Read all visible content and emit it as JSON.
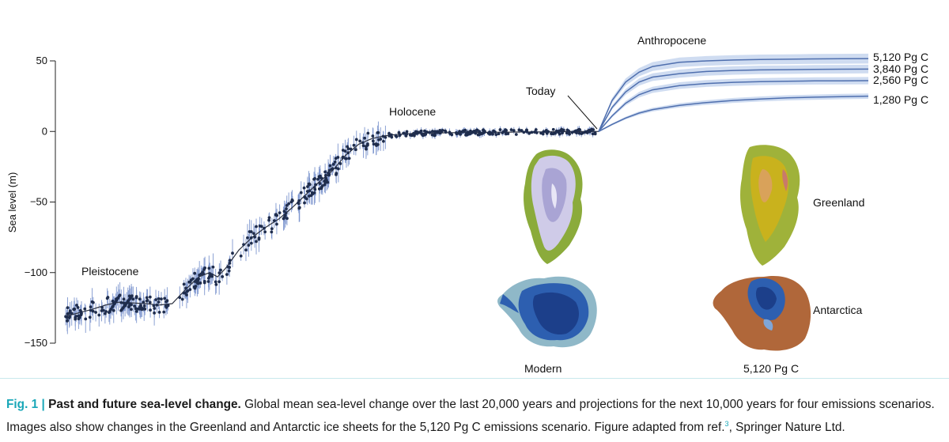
{
  "chart_data": {
    "type": "scatter",
    "ylabel": "Sea level (m)",
    "xlabel": "",
    "ylim": [
      -150,
      50
    ],
    "yticks": [
      50,
      0,
      -50,
      -100,
      -150
    ],
    "grid": false,
    "x_range_kyr": [
      -20,
      10
    ],
    "era_labels": [
      "Pleistocene",
      "Holocene",
      "Anthropocene"
    ],
    "today_label": "Today",
    "reconstruction": {
      "x": [
        -20,
        -19,
        -18.5,
        -18,
        -17,
        -16.5,
        -16,
        -15.5,
        -15,
        -14.6,
        -14.3,
        -14,
        -13.5,
        -13,
        -12.5,
        -12,
        -11.5,
        -11,
        -10.5,
        -10,
        -9.5,
        -9,
        -8.5,
        -8,
        -7.5,
        -7,
        -6.5,
        -6,
        -5,
        -4,
        -3,
        -2,
        -1,
        0
      ],
      "y": [
        -131,
        -126,
        -123,
        -121,
        -122,
        -123,
        -122,
        -112,
        -103,
        -100,
        -103,
        -97,
        -84,
        -75,
        -68,
        -62,
        -54,
        -45,
        -36,
        -28,
        -17,
        -9,
        -5,
        -3,
        -2,
        -1.5,
        -1.2,
        -1,
        -0.8,
        -0.6,
        -0.4,
        -0.3,
        -0.1,
        0
      ]
    },
    "series": [
      {
        "name": "5,120 Pg C",
        "x": [
          0,
          0.5,
          1,
          1.5,
          2,
          3,
          4,
          5,
          6,
          7,
          8,
          9,
          10
        ],
        "y": [
          0,
          22,
          35,
          42,
          46,
          49,
          50,
          50.6,
          51,
          51.2,
          51.4,
          51.5,
          51.6
        ]
      },
      {
        "name": "3,840 Pg C",
        "x": [
          0,
          0.5,
          1,
          1.5,
          2,
          3,
          4,
          5,
          6,
          7,
          8,
          9,
          10
        ],
        "y": [
          0,
          17,
          28,
          35,
          38.5,
          41,
          42.5,
          43.2,
          43.6,
          43.8,
          44,
          44.1,
          44.2
        ]
      },
      {
        "name": "2,560 Pg C",
        "x": [
          0,
          0.5,
          1,
          1.5,
          2,
          3,
          4,
          5,
          6,
          7,
          8,
          9,
          10
        ],
        "y": [
          0,
          11,
          20,
          26,
          29.5,
          32.5,
          34,
          34.8,
          35.3,
          35.6,
          35.8,
          35.9,
          36
        ]
      },
      {
        "name": "1,280 Pg C",
        "x": [
          0,
          0.5,
          1,
          1.5,
          2,
          3,
          4,
          5,
          6,
          7,
          8,
          9,
          10
        ],
        "y": [
          0,
          5,
          9.5,
          13,
          15.5,
          18.5,
          20.5,
          22,
          23,
          23.8,
          24.3,
          24.7,
          25
        ]
      }
    ],
    "band_color": "#c3d3ee",
    "line_color": "#4f6fae",
    "point_color": "#1f2d4d",
    "errorbar_color": "#7f97cf",
    "map_labels": {
      "modern": "Modern",
      "scenario": "5,120 Pg C",
      "greenland": "Greenland",
      "antarctica": "Antarctica"
    },
    "colors": {
      "ice_light": "#cfcbe8",
      "ice_mid": "#a9a4d4",
      "ice_blue": "#2d5fb0",
      "ice_deep": "#1c3f8a",
      "land_green": "#8bab3b",
      "land_yellow": "#c9b21d",
      "land_brown": "#b0673a"
    }
  },
  "caption": {
    "fig_no": "Fig. 1 |",
    "title": "Past and future sea-level change.",
    "text": "Global mean sea-level change over the last 20,000 years and projections for the next 10,000 years for four emissions scenarios. Images also show changes in the Greenland and Antarctic ice sheets for the 5,120 Pg C emissions scenario. Figure adapted from ref.",
    "ref_number": "3",
    "text_end": ", Springer Nature Ltd."
  }
}
